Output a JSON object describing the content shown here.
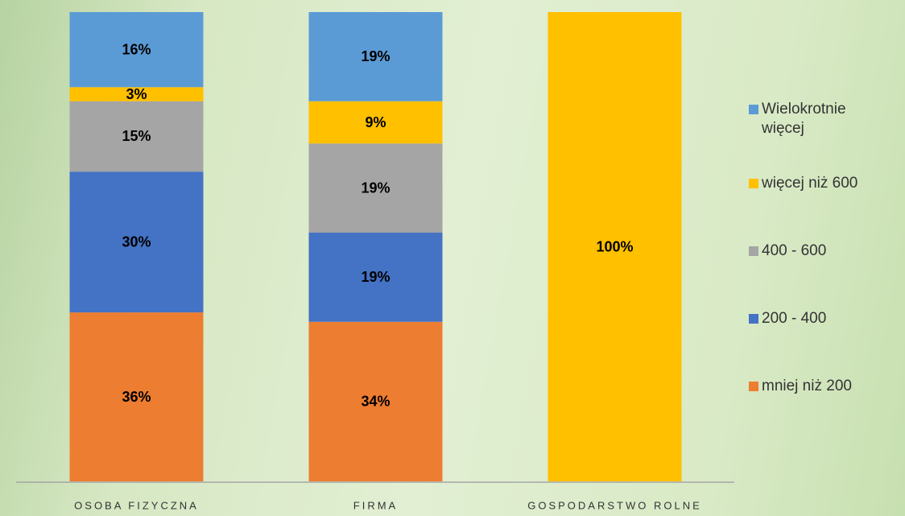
{
  "chart_data": {
    "type": "stacked_bar",
    "categories": [
      "OSOBA FIZYCZNA",
      "FIRMA",
      "GOSPODARSTWO ROLNE"
    ],
    "series": [
      {
        "name": "mniej niż 200",
        "color": "#ed7d31",
        "values": [
          36,
          34,
          null
        ],
        "value_labels": [
          "36%",
          "34%",
          null
        ]
      },
      {
        "name": "200 - 400",
        "color": "#4472c4",
        "values": [
          30,
          19,
          null
        ],
        "value_labels": [
          "30%",
          "19%",
          null
        ]
      },
      {
        "name": "400 - 600",
        "color": "#a5a5a5",
        "values": [
          15,
          19,
          null
        ],
        "value_labels": [
          "15%",
          "19%",
          null
        ]
      },
      {
        "name": "więcej niż 600",
        "color": "#ffc000",
        "values": [
          3,
          9,
          100
        ],
        "value_labels": [
          "3%",
          "9%",
          "100%"
        ]
      },
      {
        "name": "Wielokrotnie więcej",
        "color": "#5b9bd5",
        "values": [
          16,
          19,
          null
        ],
        "value_labels": [
          "16%",
          "19%",
          null
        ]
      }
    ],
    "legend": "right"
  }
}
